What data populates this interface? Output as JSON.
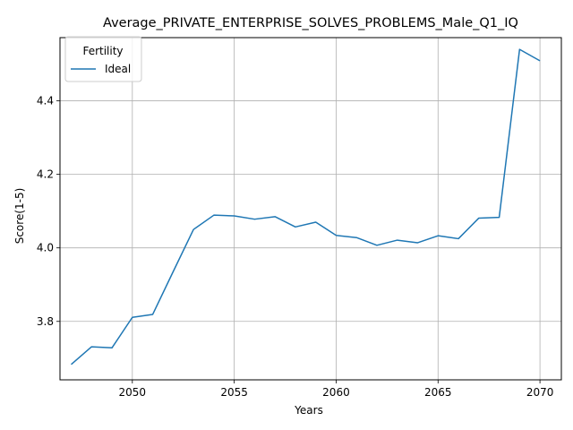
{
  "chart_data": {
    "type": "line",
    "title": "Average_PRIVATE_ENTERPRISE_SOLVES_PROBLEMS_Male_Q1_IQ",
    "xlabel": "Years",
    "ylabel": "Score(1-5)",
    "xlim": [
      2046.45,
      2071.05
    ],
    "ylim": [
      3.641,
      4.572
    ],
    "xticks": [
      2050,
      2055,
      2060,
      2065,
      2070
    ],
    "yticks": [
      3.8,
      4.0,
      4.2,
      4.4
    ],
    "grid": true,
    "legend": {
      "title": "Fertility",
      "placement": "top-left"
    },
    "series": [
      {
        "name": "Ideal",
        "color": "#1f77b4",
        "x": [
          2047,
          2048,
          2049,
          2050,
          2051,
          2052,
          2053,
          2054,
          2055,
          2056,
          2057,
          2058,
          2059,
          2060,
          2061,
          2062,
          2063,
          2064,
          2065,
          2066,
          2067,
          2068,
          2069,
          2070
        ],
        "values": [
          3.683,
          3.731,
          3.728,
          3.811,
          3.819,
          3.935,
          4.05,
          4.089,
          4.087,
          4.078,
          4.085,
          4.057,
          4.07,
          4.034,
          4.028,
          4.007,
          4.021,
          4.014,
          4.033,
          4.025,
          4.081,
          4.083,
          4.54,
          4.509
        ]
      }
    ]
  }
}
